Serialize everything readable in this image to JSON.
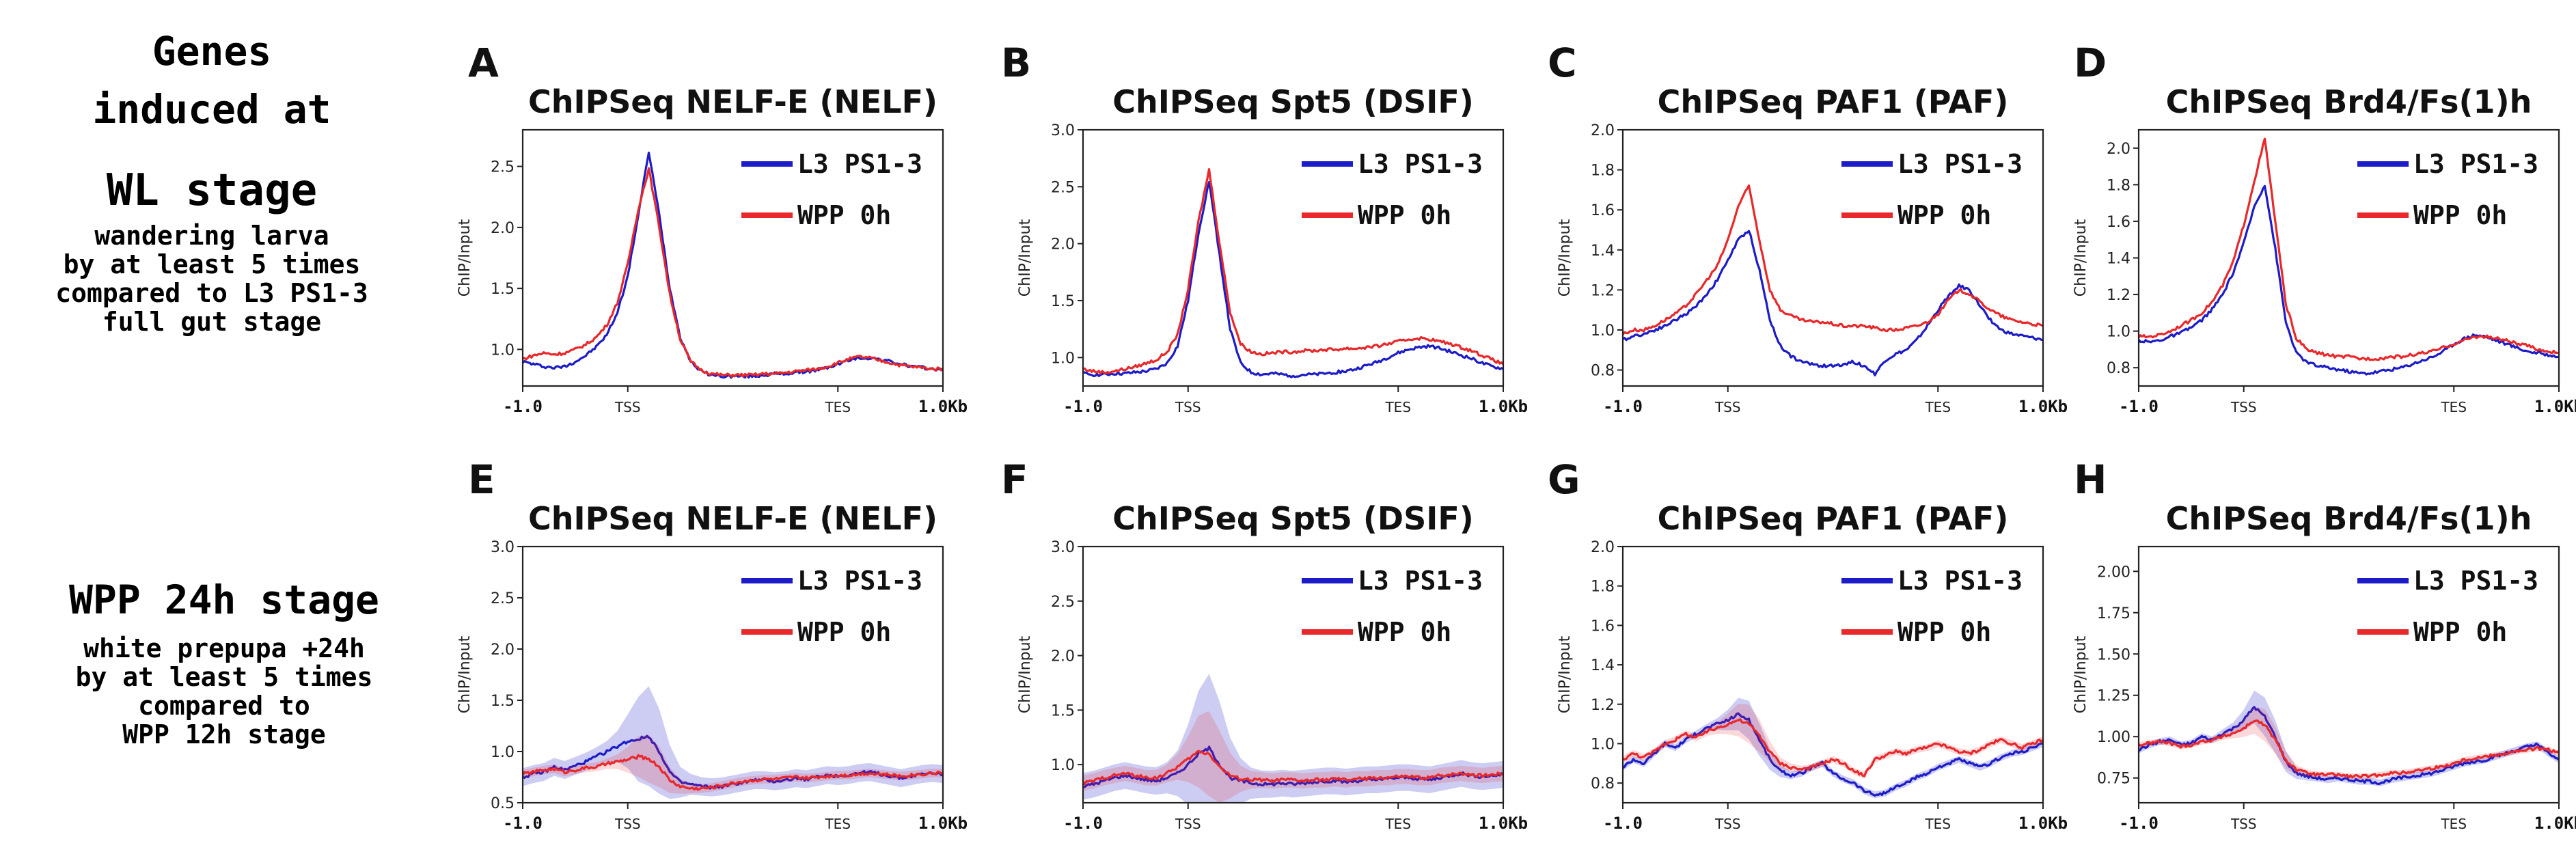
{
  "row_labels": [
    {
      "lines": [
        "Genes",
        "induced at",
        "",
        "WL stage",
        "wandering larva",
        "by at least 5 times",
        "compared to L3 PS1-3",
        "full gut stage"
      ]
    },
    {
      "lines": [
        "WPP 24h stage",
        "white prepupa +24h",
        "by at least 5 times",
        "compared to",
        "WPP 12h stage"
      ]
    }
  ],
  "colors": {
    "blue": "#1c1cc8",
    "red": "#e8282a"
  },
  "chart_data": [
    {
      "letter": "A",
      "type": "line",
      "title": "ChIPSeq NELF-E (NELF)",
      "ylabel": "ChIP/Input",
      "ylim": [
        0.7,
        2.8
      ],
      "yticks": [
        {
          "v": 1.0,
          "l": "1.0"
        },
        {
          "v": 1.5,
          "l": "1.5"
        },
        {
          "v": 2.0,
          "l": "2.0"
        },
        {
          "v": 2.5,
          "l": "2.5"
        }
      ],
      "xticklabels": [
        "-1.0",
        "TSS",
        "TES",
        "1.0Kb"
      ],
      "series": [
        {
          "name": "L3 PS1-3",
          "color": "#1c1cc8",
          "values": [
            0.9,
            0.88,
            0.86,
            0.85,
            0.86,
            0.9,
            0.95,
            1.02,
            1.12,
            1.3,
            1.6,
            2.1,
            2.62,
            2.1,
            1.5,
            1.1,
            0.9,
            0.82,
            0.79,
            0.78,
            0.78,
            0.78,
            0.78,
            0.79,
            0.8,
            0.8,
            0.81,
            0.82,
            0.83,
            0.85,
            0.88,
            0.91,
            0.93,
            0.93,
            0.92,
            0.9,
            0.88,
            0.86,
            0.85,
            0.84,
            0.83
          ]
        },
        {
          "name": "WPP 0h",
          "color": "#e8282a",
          "values": [
            0.92,
            0.95,
            0.97,
            0.96,
            0.97,
            1.0,
            1.04,
            1.1,
            1.2,
            1.38,
            1.7,
            2.15,
            2.48,
            2.0,
            1.45,
            1.08,
            0.9,
            0.83,
            0.8,
            0.79,
            0.79,
            0.79,
            0.79,
            0.8,
            0.8,
            0.81,
            0.82,
            0.83,
            0.84,
            0.86,
            0.89,
            0.92,
            0.94,
            0.93,
            0.91,
            0.89,
            0.87,
            0.86,
            0.85,
            0.84,
            0.84
          ]
        }
      ]
    },
    {
      "letter": "B",
      "type": "line",
      "title": "ChIPSeq Spt5 (DSIF)",
      "ylabel": "ChIP/Input",
      "ylim": [
        0.75,
        3.0
      ],
      "yticks": [
        {
          "v": 1.0,
          "l": "1.0"
        },
        {
          "v": 1.5,
          "l": "1.5"
        },
        {
          "v": 2.0,
          "l": "2.0"
        },
        {
          "v": 2.5,
          "l": "2.5"
        },
        {
          "v": 3.0,
          "l": "3.0"
        }
      ],
      "xticklabels": [
        "-1.0",
        "TSS",
        "TES",
        "1.0Kb"
      ],
      "series": [
        {
          "name": "L3 PS1-3",
          "color": "#1c1cc8",
          "values": [
            0.86,
            0.85,
            0.85,
            0.86,
            0.86,
            0.87,
            0.88,
            0.9,
            0.95,
            1.1,
            1.5,
            2.1,
            2.55,
            1.9,
            1.25,
            0.95,
            0.87,
            0.85,
            0.86,
            0.85,
            0.84,
            0.85,
            0.85,
            0.86,
            0.87,
            0.88,
            0.9,
            0.93,
            0.96,
            1.0,
            1.04,
            1.07,
            1.09,
            1.1,
            1.08,
            1.05,
            1.02,
            0.99,
            0.95,
            0.92,
            0.9
          ]
        },
        {
          "name": "WPP 0h",
          "color": "#e8282a",
          "values": [
            0.9,
            0.88,
            0.87,
            0.88,
            0.9,
            0.92,
            0.95,
            0.98,
            1.05,
            1.2,
            1.6,
            2.2,
            2.65,
            2.0,
            1.4,
            1.12,
            1.05,
            1.03,
            1.04,
            1.05,
            1.05,
            1.06,
            1.06,
            1.07,
            1.07,
            1.08,
            1.08,
            1.09,
            1.1,
            1.12,
            1.14,
            1.16,
            1.17,
            1.16,
            1.14,
            1.12,
            1.09,
            1.06,
            1.02,
            0.98,
            0.94
          ]
        }
      ]
    },
    {
      "letter": "C",
      "type": "line",
      "title": "ChIPSeq PAF1 (PAF)",
      "ylabel": "ChIP/Input",
      "ylim": [
        0.72,
        2.0
      ],
      "yticks": [
        {
          "v": 0.8,
          "l": "0.8"
        },
        {
          "v": 1.0,
          "l": "1.0"
        },
        {
          "v": 1.2,
          "l": "1.2"
        },
        {
          "v": 1.4,
          "l": "1.4"
        },
        {
          "v": 1.6,
          "l": "1.6"
        },
        {
          "v": 1.8,
          "l": "1.8"
        },
        {
          "v": 2.0,
          "l": "2.0"
        }
      ],
      "xticklabels": [
        "-1.0",
        "TSS",
        "TES",
        "1.0Kb"
      ],
      "series": [
        {
          "name": "L3 PS1-3",
          "color": "#1c1cc8",
          "values": [
            0.95,
            0.97,
            0.98,
            1.0,
            1.02,
            1.05,
            1.08,
            1.12,
            1.18,
            1.25,
            1.35,
            1.45,
            1.5,
            1.3,
            1.05,
            0.92,
            0.87,
            0.84,
            0.83,
            0.82,
            0.82,
            0.83,
            0.84,
            0.82,
            0.78,
            0.85,
            0.88,
            0.9,
            0.95,
            1.02,
            1.1,
            1.17,
            1.22,
            1.2,
            1.12,
            1.05,
            1.0,
            0.98,
            0.97,
            0.96,
            0.95
          ]
        },
        {
          "name": "WPP 0h",
          "color": "#e8282a",
          "values": [
            0.98,
            1.0,
            1.0,
            1.02,
            1.05,
            1.08,
            1.12,
            1.18,
            1.25,
            1.32,
            1.45,
            1.62,
            1.72,
            1.45,
            1.2,
            1.1,
            1.07,
            1.05,
            1.04,
            1.04,
            1.03,
            1.02,
            1.02,
            1.02,
            1.01,
            1.0,
            1.0,
            1.01,
            1.02,
            1.04,
            1.08,
            1.15,
            1.2,
            1.18,
            1.14,
            1.1,
            1.07,
            1.05,
            1.04,
            1.03,
            1.02
          ]
        }
      ]
    },
    {
      "letter": "D",
      "type": "line",
      "title": "ChIPSeq Brd4/Fs(1)h",
      "ylabel": "ChIP/Input",
      "ylim": [
        0.7,
        2.1
      ],
      "yticks": [
        {
          "v": 0.8,
          "l": "0.8"
        },
        {
          "v": 1.0,
          "l": "1.0"
        },
        {
          "v": 1.2,
          "l": "1.2"
        },
        {
          "v": 1.4,
          "l": "1.4"
        },
        {
          "v": 1.6,
          "l": "1.6"
        },
        {
          "v": 1.8,
          "l": "1.8"
        },
        {
          "v": 2.0,
          "l": "2.0"
        }
      ],
      "xticklabels": [
        "-1.0",
        "TSS",
        "TES",
        "1.0Kb"
      ],
      "series": [
        {
          "name": "L3 PS1-3",
          "color": "#1c1cc8",
          "values": [
            0.95,
            0.94,
            0.95,
            0.97,
            0.99,
            1.02,
            1.06,
            1.12,
            1.2,
            1.32,
            1.48,
            1.68,
            1.8,
            1.45,
            1.05,
            0.88,
            0.83,
            0.81,
            0.8,
            0.79,
            0.78,
            0.77,
            0.77,
            0.78,
            0.79,
            0.8,
            0.82,
            0.84,
            0.86,
            0.89,
            0.93,
            0.96,
            0.98,
            0.97,
            0.95,
            0.93,
            0.91,
            0.89,
            0.88,
            0.87,
            0.86
          ]
        },
        {
          "name": "WPP 0h",
          "color": "#e8282a",
          "values": [
            0.97,
            0.97,
            0.98,
            1.0,
            1.03,
            1.06,
            1.1,
            1.16,
            1.25,
            1.38,
            1.58,
            1.82,
            2.05,
            1.6,
            1.15,
            0.96,
            0.9,
            0.88,
            0.87,
            0.86,
            0.86,
            0.85,
            0.85,
            0.85,
            0.86,
            0.86,
            0.87,
            0.88,
            0.89,
            0.91,
            0.93,
            0.95,
            0.97,
            0.97,
            0.96,
            0.95,
            0.93,
            0.92,
            0.9,
            0.89,
            0.88
          ]
        }
      ]
    },
    {
      "letter": "E",
      "type": "line",
      "title": "ChIPSeq NELF-E (NELF)",
      "ylabel": "ChIP/Input",
      "ylim": [
        0.5,
        3.0
      ],
      "yticks": [
        {
          "v": 0.5,
          "l": "0.5"
        },
        {
          "v": 1.0,
          "l": "1.0"
        },
        {
          "v": 1.5,
          "l": "1.5"
        },
        {
          "v": 2.0,
          "l": "2.0"
        },
        {
          "v": 2.5,
          "l": "2.5"
        },
        {
          "v": 3.0,
          "l": "3.0"
        }
      ],
      "xticklabels": [
        "-1.0",
        "TSS",
        "TES",
        "1.0Kb"
      ],
      "series": [
        {
          "name": "L3 PS1-3",
          "color": "#1c1cc8",
          "band": 0.25,
          "values": [
            0.75,
            0.78,
            0.8,
            0.85,
            0.82,
            0.86,
            0.9,
            0.95,
            1.0,
            1.05,
            1.1,
            1.12,
            1.15,
            1.0,
            0.8,
            0.7,
            0.68,
            0.66,
            0.65,
            0.66,
            0.68,
            0.7,
            0.72,
            0.72,
            0.71,
            0.72,
            0.74,
            0.73,
            0.75,
            0.77,
            0.76,
            0.77,
            0.79,
            0.8,
            0.78,
            0.76,
            0.74,
            0.76,
            0.78,
            0.79,
            0.78
          ]
        },
        {
          "name": "WPP 0h",
          "color": "#e8282a",
          "band": 0.12,
          "values": [
            0.78,
            0.8,
            0.82,
            0.83,
            0.8,
            0.82,
            0.84,
            0.85,
            0.88,
            0.9,
            0.92,
            0.95,
            0.93,
            0.85,
            0.72,
            0.66,
            0.64,
            0.64,
            0.65,
            0.67,
            0.69,
            0.71,
            0.72,
            0.73,
            0.73,
            0.74,
            0.75,
            0.74,
            0.75,
            0.76,
            0.77,
            0.77,
            0.78,
            0.79,
            0.78,
            0.77,
            0.76,
            0.77,
            0.78,
            0.79,
            0.79
          ]
        }
      ]
    },
    {
      "letter": "F",
      "type": "line",
      "title": "ChIPSeq Spt5 (DSIF)",
      "ylabel": "ChIP/Input",
      "ylim": [
        0.65,
        3.0
      ],
      "yticks": [
        {
          "v": 1.0,
          "l": "1.0"
        },
        {
          "v": 1.5,
          "l": "1.5"
        },
        {
          "v": 2.0,
          "l": "2.0"
        },
        {
          "v": 2.5,
          "l": "2.5"
        },
        {
          "v": 3.0,
          "l": "3.0"
        }
      ],
      "xticklabels": [
        "-1.0",
        "TSS",
        "TES",
        "1.0Kb"
      ],
      "series": [
        {
          "name": "L3 PS1-3",
          "color": "#1c1cc8",
          "band": 0.35,
          "values": [
            0.8,
            0.82,
            0.85,
            0.88,
            0.9,
            0.88,
            0.86,
            0.85,
            0.88,
            0.92,
            1.0,
            1.1,
            1.15,
            1.0,
            0.88,
            0.85,
            0.83,
            0.82,
            0.82,
            0.83,
            0.82,
            0.83,
            0.84,
            0.85,
            0.85,
            0.84,
            0.85,
            0.86,
            0.86,
            0.87,
            0.88,
            0.88,
            0.87,
            0.86,
            0.88,
            0.9,
            0.92,
            0.9,
            0.89,
            0.9,
            0.91
          ]
        },
        {
          "name": "WPP 0h",
          "color": "#e8282a",
          "band": 0.2,
          "values": [
            0.83,
            0.85,
            0.88,
            0.9,
            0.92,
            0.9,
            0.88,
            0.88,
            0.92,
            0.98,
            1.05,
            1.12,
            1.1,
            0.98,
            0.9,
            0.87,
            0.86,
            0.86,
            0.85,
            0.86,
            0.86,
            0.85,
            0.86,
            0.86,
            0.87,
            0.86,
            0.87,
            0.87,
            0.88,
            0.88,
            0.89,
            0.89,
            0.88,
            0.88,
            0.9,
            0.91,
            0.92,
            0.91,
            0.9,
            0.91,
            0.92
          ]
        }
      ]
    },
    {
      "letter": "G",
      "type": "line",
      "title": "ChIPSeq PAF1 (PAF)",
      "ylabel": "ChIP/Input",
      "ylim": [
        0.7,
        2.0
      ],
      "yticks": [
        {
          "v": 0.8,
          "l": "0.8"
        },
        {
          "v": 1.0,
          "l": "1.0"
        },
        {
          "v": 1.2,
          "l": "1.2"
        },
        {
          "v": 1.4,
          "l": "1.4"
        },
        {
          "v": 1.6,
          "l": "1.6"
        },
        {
          "v": 1.8,
          "l": "1.8"
        },
        {
          "v": 2.0,
          "l": "2.0"
        }
      ],
      "xticklabels": [
        "-1.0",
        "TSS",
        "TES",
        "1.0Kb"
      ],
      "series": [
        {
          "name": "L3 PS1-3",
          "color": "#1c1cc8",
          "band": 0.05,
          "values": [
            0.88,
            0.92,
            0.9,
            0.95,
            1.0,
            0.98,
            1.02,
            1.05,
            1.08,
            1.1,
            1.12,
            1.15,
            1.12,
            1.02,
            0.92,
            0.86,
            0.84,
            0.85,
            0.88,
            0.9,
            0.85,
            0.82,
            0.8,
            0.76,
            0.74,
            0.75,
            0.78,
            0.8,
            0.83,
            0.85,
            0.88,
            0.9,
            0.92,
            0.9,
            0.88,
            0.9,
            0.93,
            0.95,
            0.96,
            0.98,
            1.0
          ]
        },
        {
          "name": "WPP 0h",
          "color": "#e8282a",
          "band": 0.05,
          "values": [
            0.92,
            0.95,
            0.93,
            0.96,
            1.0,
            1.02,
            1.05,
            1.03,
            1.06,
            1.08,
            1.1,
            1.12,
            1.1,
            1.04,
            0.96,
            0.9,
            0.88,
            0.87,
            0.88,
            0.9,
            0.92,
            0.9,
            0.86,
            0.84,
            0.92,
            0.94,
            0.96,
            0.95,
            0.97,
            0.98,
            1.0,
            0.98,
            0.96,
            0.95,
            0.97,
            1.0,
            1.02,
            1.0,
            0.98,
            1.0,
            1.02
          ]
        }
      ]
    },
    {
      "letter": "H",
      "type": "line",
      "title": "ChIPSeq Brd4/Fs(1)h",
      "ylabel": "ChIP/Input",
      "ylim": [
        0.6,
        2.15
      ],
      "yticks": [
        {
          "v": 0.75,
          "l": "0.75"
        },
        {
          "v": 1.0,
          "l": "1.00"
        },
        {
          "v": 1.25,
          "l": "1.25"
        },
        {
          "v": 1.5,
          "l": "1.50"
        },
        {
          "v": 1.75,
          "l": "1.75"
        },
        {
          "v": 2.0,
          "l": "2.00"
        }
      ],
      "xticklabels": [
        "-1.0",
        "TSS",
        "TES",
        "1.0Kb"
      ],
      "series": [
        {
          "name": "L3 PS1-3",
          "color": "#1c1cc8",
          "band": 0.06,
          "values": [
            0.92,
            0.95,
            0.97,
            0.98,
            0.95,
            0.96,
            1.0,
            0.98,
            1.02,
            1.05,
            1.1,
            1.18,
            1.12,
            1.0,
            0.85,
            0.78,
            0.76,
            0.75,
            0.74,
            0.75,
            0.74,
            0.73,
            0.73,
            0.72,
            0.74,
            0.75,
            0.76,
            0.77,
            0.78,
            0.8,
            0.82,
            0.84,
            0.85,
            0.86,
            0.88,
            0.9,
            0.92,
            0.94,
            0.95,
            0.9,
            0.86
          ]
        },
        {
          "name": "WPP 0h",
          "color": "#e8282a",
          "band": 0.05,
          "values": [
            0.95,
            0.96,
            0.97,
            0.96,
            0.94,
            0.95,
            0.97,
            0.98,
            1.0,
            1.02,
            1.05,
            1.1,
            1.07,
            0.98,
            0.86,
            0.8,
            0.78,
            0.77,
            0.77,
            0.77,
            0.76,
            0.76,
            0.76,
            0.77,
            0.78,
            0.78,
            0.79,
            0.8,
            0.81,
            0.82,
            0.84,
            0.86,
            0.87,
            0.88,
            0.89,
            0.9,
            0.91,
            0.92,
            0.93,
            0.92,
            0.9
          ]
        }
      ]
    }
  ]
}
